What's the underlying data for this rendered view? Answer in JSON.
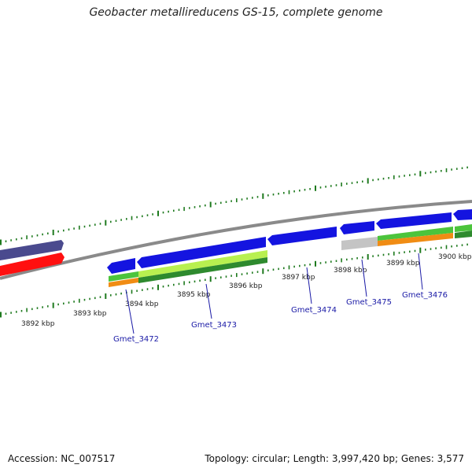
{
  "title": "Geobacter metallireducens GS-15, complete genome",
  "footer": {
    "accession": "Accession: NC_007517",
    "summary": "Topology: circular; Length: 3,997,420 bp; Genes: 3,577"
  },
  "colors": {
    "backbone": "#8a8a8a",
    "tick": "#1e7a1e",
    "cds": "#1414e0",
    "gene_green": "#4cc43c",
    "gene_orange": "#f08c14",
    "gene_lime": "#b8f050",
    "gene_darkgreen": "#2e8a2e",
    "gene_red": "#ff1010",
    "gene_purple": "#4a4a8e",
    "gene_gray": "#c4c4c4",
    "label": "#1a1aa6"
  },
  "kbp_labels": [
    "3892 kbp",
    "3893 kbp",
    "3894 kbp",
    "3895 kbp",
    "3896 kbp",
    "3897 kbp",
    "3898 kbp",
    "3899 kbp",
    "3900 kbp"
  ],
  "genes": [
    {
      "name": "Gmet_3472"
    },
    {
      "name": "Gmet_3473"
    },
    {
      "name": "Gmet_3474"
    },
    {
      "name": "Gmet_3475"
    },
    {
      "name": "Gmet_3476"
    }
  ]
}
